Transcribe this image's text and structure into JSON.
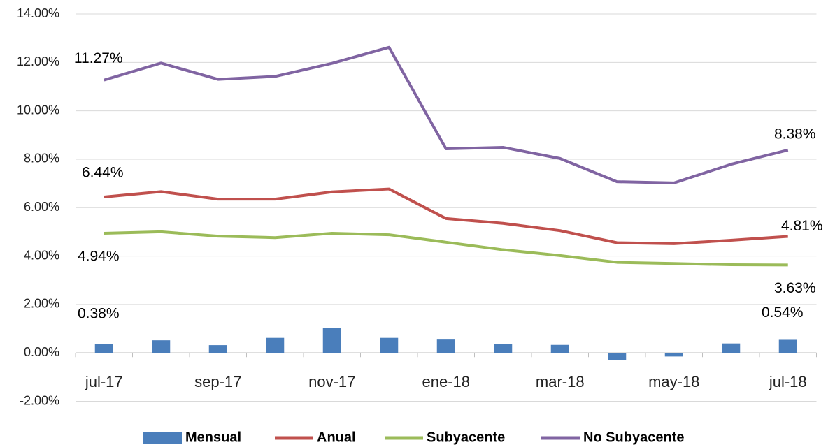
{
  "chart_data": {
    "type": "bar_line",
    "categories": [
      "jul-17",
      null,
      "sep-17",
      null,
      "nov-17",
      null,
      "ene-18",
      null,
      "mar-18",
      null,
      "may-18",
      null,
      "jul-18"
    ],
    "series": [
      {
        "name": "Mensual",
        "type": "bar",
        "color": "#4a7ebb",
        "values": [
          0.38,
          0.52,
          0.32,
          0.62,
          1.04,
          0.62,
          0.55,
          0.38,
          0.33,
          -0.3,
          -0.15,
          0.39,
          0.54
        ],
        "value_labels": [
          "0.38%",
          null,
          null,
          null,
          null,
          null,
          null,
          null,
          null,
          null,
          null,
          null,
          "0.54%"
        ]
      },
      {
        "name": "Anual",
        "type": "line",
        "color": "#c0504d",
        "values": [
          6.44,
          6.66,
          6.35,
          6.35,
          6.65,
          6.77,
          5.55,
          5.35,
          5.05,
          4.55,
          4.51,
          4.65,
          4.81
        ],
        "value_labels": [
          "6.44%",
          null,
          null,
          null,
          null,
          null,
          null,
          null,
          null,
          null,
          null,
          null,
          "4.81%"
        ]
      },
      {
        "name": "Subyacente",
        "type": "line",
        "color": "#9bbb59",
        "values": [
          4.94,
          5.0,
          4.82,
          4.76,
          4.94,
          4.88,
          4.57,
          4.26,
          4.02,
          3.74,
          3.69,
          3.64,
          3.63
        ],
        "value_labels": [
          "4.94%",
          null,
          null,
          null,
          null,
          null,
          null,
          null,
          null,
          null,
          null,
          null,
          "3.63%"
        ]
      },
      {
        "name": "No Subyacente",
        "type": "line",
        "color": "#8064a2",
        "values": [
          11.27,
          11.97,
          11.3,
          11.42,
          11.96,
          12.62,
          8.43,
          8.49,
          8.03,
          7.07,
          7.02,
          7.79,
          8.38
        ],
        "value_labels": [
          "11.27%",
          null,
          null,
          null,
          null,
          null,
          null,
          null,
          null,
          null,
          null,
          null,
          "8.38%"
        ]
      }
    ],
    "ylim": [
      -2,
      14
    ],
    "yticks": [
      {
        "value": -2,
        "label": "-2.00%"
      },
      {
        "value": 0,
        "label": "0.00%"
      },
      {
        "value": 2,
        "label": "2.00%"
      },
      {
        "value": 4,
        "label": "4.00%"
      },
      {
        "value": 6,
        "label": "6.00%"
      },
      {
        "value": 8,
        "label": "8.00%"
      },
      {
        "value": 10,
        "label": "10.00%"
      },
      {
        "value": 12,
        "label": "12.00%"
      },
      {
        "value": 14,
        "label": "14.00%"
      }
    ],
    "grid": true,
    "legend": "bottom"
  }
}
